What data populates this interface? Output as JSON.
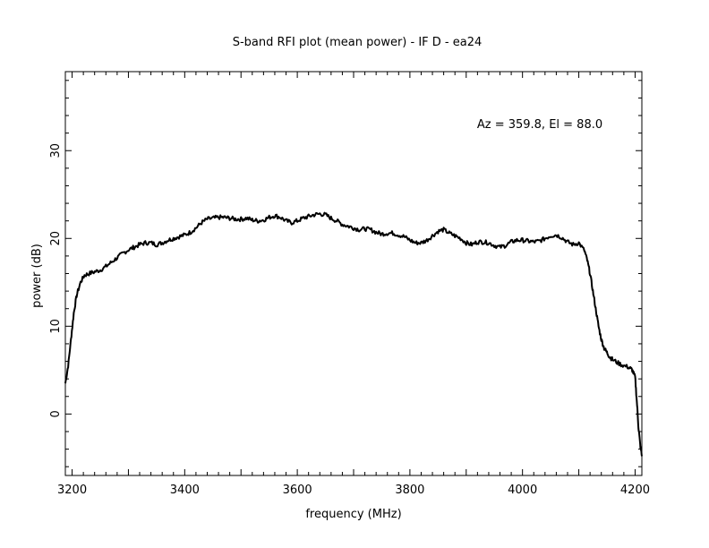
{
  "chart_data": {
    "type": "line",
    "title": "S-band RFI plot (mean power) - IF D - ea24",
    "xlabel": "frequency (MHz)",
    "ylabel": "power (dB)",
    "annotation": "Az = 359.8, El = 88.0",
    "xlim": [
      3188,
      4212
    ],
    "ylim": [
      -7,
      39
    ],
    "x_ticks": [
      3200,
      3400,
      3600,
      3800,
      4000,
      4200
    ],
    "x_tick_labels": [
      "3200",
      "3400",
      "3600",
      "3800",
      "4000",
      "4200"
    ],
    "y_ticks": [
      0,
      10,
      20,
      30
    ],
    "y_tick_labels": [
      "0",
      "10",
      "20",
      "30"
    ],
    "grid": false,
    "line_color": "#000000",
    "series": [
      {
        "x": [
          3188,
          3193,
          3198,
          3203,
          3208,
          3215,
          3222,
          3230,
          3240,
          3250,
          3260,
          3270,
          3280,
          3290,
          3300,
          3310,
          3320,
          3330,
          3340,
          3350,
          3360,
          3370,
          3380,
          3390,
          3400,
          3410,
          3420,
          3430,
          3440,
          3450,
          3460,
          3470,
          3480,
          3490,
          3500,
          3510,
          3520,
          3530,
          3540,
          3550,
          3560,
          3570,
          3580,
          3590,
          3600,
          3610,
          3620,
          3630,
          3640,
          3650,
          3660,
          3670,
          3680,
          3690,
          3700,
          3710,
          3720,
          3730,
          3740,
          3750,
          3760,
          3770,
          3780,
          3790,
          3800,
          3810,
          3820,
          3830,
          3840,
          3850,
          3860,
          3870,
          3880,
          3890,
          3900,
          3910,
          3920,
          3930,
          3940,
          3950,
          3960,
          3970,
          3980,
          3990,
          4000,
          4010,
          4020,
          4030,
          4040,
          4050,
          4060,
          4070,
          4080,
          4090,
          4100,
          4110,
          4115,
          4120,
          4125,
          4130,
          4135,
          4140,
          4145,
          4150,
          4155,
          4160,
          4170,
          4180,
          4190,
          4195,
          4200,
          4203,
          4206,
          4209,
          4212
        ],
        "y": [
          3.5,
          5.5,
          8.5,
          11.5,
          13.5,
          15.0,
          15.8,
          16.0,
          16.2,
          16.4,
          16.8,
          17.3,
          17.8,
          18.3,
          18.7,
          19.0,
          19.3,
          19.5,
          19.5,
          19.3,
          19.5,
          19.8,
          20.0,
          20.2,
          20.4,
          20.7,
          21.2,
          21.8,
          22.2,
          22.3,
          22.4,
          22.4,
          22.3,
          22.2,
          22.2,
          22.3,
          22.1,
          22.0,
          22.1,
          22.4,
          22.6,
          22.4,
          22.0,
          21.8,
          22.0,
          22.3,
          22.5,
          22.7,
          22.8,
          22.7,
          22.3,
          22.0,
          21.6,
          21.4,
          21.2,
          21.0,
          21.1,
          21.0,
          20.7,
          20.5,
          20.6,
          20.6,
          20.4,
          20.2,
          19.8,
          19.5,
          19.5,
          19.8,
          20.3,
          20.8,
          21.0,
          20.6,
          20.3,
          20.0,
          19.5,
          19.3,
          19.6,
          19.6,
          19.5,
          19.2,
          19.0,
          19.2,
          19.6,
          19.8,
          19.8,
          19.7,
          19.6,
          19.7,
          20.0,
          20.3,
          20.4,
          20.1,
          19.6,
          19.3,
          19.5,
          18.6,
          17.5,
          16.0,
          14.0,
          12.0,
          10.0,
          8.5,
          7.5,
          7.0,
          6.5,
          6.2,
          5.8,
          5.5,
          5.3,
          5.0,
          4.2,
          1.5,
          -1.5,
          -3.5,
          -4.8
        ]
      }
    ]
  }
}
